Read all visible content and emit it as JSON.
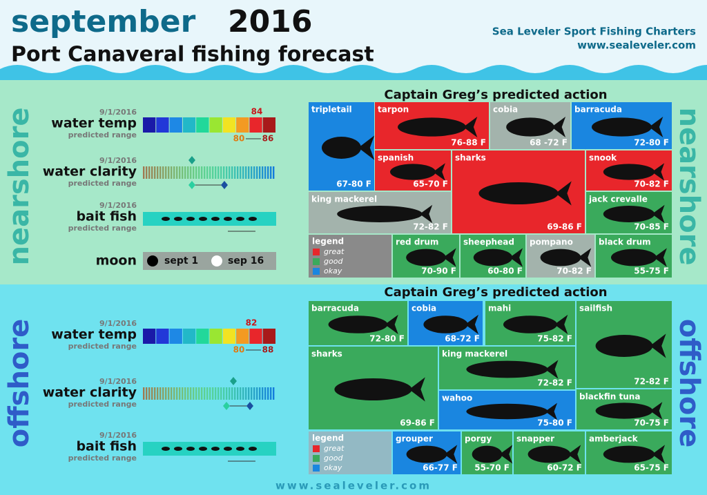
{
  "header": {
    "month": "september",
    "year": "2016",
    "subtitle": "Port Canaveral fishing forecast",
    "company": "Sea Leveler Sport Fishing Charters",
    "url": "www.sealeveler.com"
  },
  "nearshore": {
    "label": "nearshore",
    "heading": "Captain Greg’s predicted action",
    "water_temp": {
      "date": "9/1/2016",
      "label": "water temp",
      "sub": "predicted range",
      "current": "84",
      "low": "80",
      "high": "86"
    },
    "water_clarity": {
      "date": "9/1/2016",
      "label": "water clarity",
      "sub": "predicted range"
    },
    "bait_fish": {
      "date": "9/1/2016",
      "label": "bait fish",
      "sub": "predicted range"
    },
    "moon": {
      "label": "moon",
      "first": "sept 1",
      "second": "sep 16"
    },
    "legend": {
      "title": "legend",
      "items": [
        {
          "name": "great",
          "color": "#e8262b"
        },
        {
          "name": "good",
          "color": "#3aaa5c"
        },
        {
          "name": "okay",
          "color": "#1a86e0"
        }
      ]
    },
    "fish": [
      {
        "name": "tripletail",
        "range": "67-80 F",
        "color": "#1a86e0"
      },
      {
        "name": "tarpon",
        "range": "76-88 F",
        "color": "#e8262b"
      },
      {
        "name": "cobia",
        "range": "68 -72 F",
        "color": "#a3b3ac"
      },
      {
        "name": "barracuda",
        "range": "72-80 F",
        "color": "#1a86e0"
      },
      {
        "name": "spanish",
        "range": "65-70 F",
        "color": "#e8262b"
      },
      {
        "name": "sharks",
        "range": "69-86 F",
        "color": "#e8262b"
      },
      {
        "name": "snook",
        "range": "70-82 F",
        "color": "#e8262b"
      },
      {
        "name": "king mackerel",
        "range": "72-82 F",
        "color": "#a3b3ac"
      },
      {
        "name": "jack crevalle",
        "range": "70-85 F",
        "color": "#3aaa5c"
      },
      {
        "name": "red drum",
        "range": "70-90 F",
        "color": "#3aaa5c"
      },
      {
        "name": "sheephead",
        "range": "60-80 F",
        "color": "#3aaa5c"
      },
      {
        "name": "pompano",
        "range": "70-82 F",
        "color": "#a3b3ac"
      },
      {
        "name": "black drum",
        "range": "55-75 F",
        "color": "#3aaa5c"
      }
    ]
  },
  "offshore": {
    "label": "offshore",
    "heading": "Captain Greg’s predicted action",
    "water_temp": {
      "date": "9/1/2016",
      "label": "water temp",
      "sub": "predicted range",
      "current": "82",
      "low": "80",
      "high": "88"
    },
    "water_clarity": {
      "date": "9/1/2016",
      "label": "water clarity",
      "sub": "predicted range"
    },
    "bait_fish": {
      "date": "9/1/2016",
      "label": "bait fish",
      "sub": "predicted range"
    },
    "legend": {
      "title": "legend",
      "items": [
        {
          "name": "great",
          "color": "#e8262b"
        },
        {
          "name": "good",
          "color": "#3aaa5c"
        },
        {
          "name": "okay",
          "color": "#1a86e0"
        }
      ]
    },
    "fish": [
      {
        "name": "barracuda",
        "range": "72-80 F",
        "color": "#3aaa5c"
      },
      {
        "name": "cobia",
        "range": "68-72 F",
        "color": "#1a86e0"
      },
      {
        "name": "mahi",
        "range": "75-82 F",
        "color": "#3aaa5c"
      },
      {
        "name": "sailfish",
        "range": "72-82 F",
        "color": "#3aaa5c"
      },
      {
        "name": "sharks",
        "range": "69-86 F",
        "color": "#3aaa5c"
      },
      {
        "name": "king mackerel",
        "range": "72-82 F",
        "color": "#3aaa5c"
      },
      {
        "name": "wahoo",
        "range": "75-80 F",
        "color": "#1a86e0"
      },
      {
        "name": "blackfin tuna",
        "range": "70-75 F",
        "color": "#3aaa5c"
      },
      {
        "name": "grouper",
        "range": "66-77 F",
        "color": "#1a86e0"
      },
      {
        "name": "porgy",
        "range": "55-70 F",
        "color": "#3aaa5c"
      },
      {
        "name": "snapper",
        "range": "60-72 F",
        "color": "#3aaa5c"
      },
      {
        "name": "amberjack",
        "range": "65-75 F",
        "color": "#3aaa5c"
      }
    ]
  },
  "footer": {
    "url": "www.sealeveler.com"
  }
}
